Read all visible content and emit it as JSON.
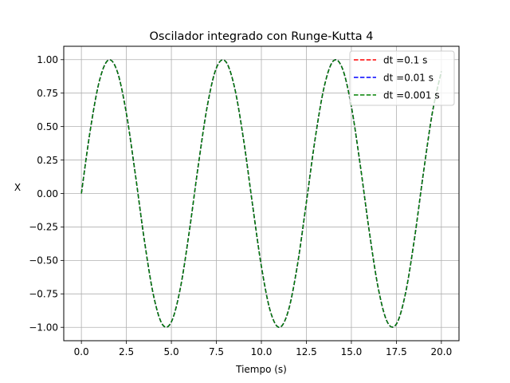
{
  "chart_data": {
    "type": "line",
    "title": "Oscilador integrado con Runge-Kutta 4",
    "xlabel": "Tiempo (s)",
    "ylabel": "X",
    "xlim": [
      -0.98,
      20.98
    ],
    "ylim": [
      -1.1,
      1.1
    ],
    "xticks": [
      0,
      2.5,
      5,
      7.5,
      10,
      12.5,
      15,
      17.5,
      20
    ],
    "xtick_labels": [
      "0.0",
      "2.5",
      "5.0",
      "7.5",
      "10.0",
      "12.5",
      "15.0",
      "17.5",
      "20.0"
    ],
    "yticks": [
      -1,
      -0.75,
      -0.5,
      -0.25,
      0,
      0.25,
      0.5,
      0.75,
      1
    ],
    "ytick_labels": [
      "−1.00",
      "−0.75",
      "−0.50",
      "−0.25",
      "0.00",
      "0.25",
      "0.50",
      "0.75",
      "1.00"
    ],
    "grid": true,
    "legend_position": "top-right",
    "x": [
      0.0,
      0.5,
      1.0,
      1.5,
      2.0,
      2.5,
      3.0,
      3.5,
      4.0,
      4.5,
      5.0,
      5.5,
      6.0,
      6.5,
      7.0,
      7.5,
      8.0,
      8.5,
      9.0,
      9.5,
      10.0,
      10.5,
      11.0,
      11.5,
      12.0,
      12.5,
      13.0,
      13.5,
      14.0,
      14.5,
      15.0,
      15.5,
      16.0,
      16.5,
      17.0,
      17.5,
      18.0,
      18.5,
      19.0,
      19.5,
      20.0
    ],
    "series": [
      {
        "name": "dt =0.1 s",
        "color": "#ff0000",
        "linestyle": "dashed",
        "values": [
          0.0,
          0.479,
          0.841,
          0.997,
          0.909,
          0.598,
          0.141,
          -0.351,
          -0.757,
          -0.978,
          -0.959,
          -0.706,
          -0.279,
          0.215,
          0.657,
          0.938,
          0.989,
          0.798,
          0.412,
          -0.075,
          -0.544,
          -0.88,
          -1.0,
          -0.875,
          -0.537,
          -0.066,
          0.42,
          0.803,
          0.991,
          0.935,
          0.65,
          0.206,
          -0.288,
          -0.712,
          -0.961,
          -0.976,
          -0.751,
          -0.343,
          0.151,
          0.604,
          0.913
        ]
      },
      {
        "name": "dt =0.01 s",
        "color": "#0000ff",
        "linestyle": "dashed",
        "values": [
          0.0,
          0.479,
          0.841,
          0.997,
          0.909,
          0.598,
          0.141,
          -0.351,
          -0.757,
          -0.978,
          -0.959,
          -0.706,
          -0.279,
          0.215,
          0.657,
          0.938,
          0.989,
          0.798,
          0.412,
          -0.075,
          -0.544,
          -0.88,
          -1.0,
          -0.875,
          -0.537,
          -0.066,
          0.42,
          0.803,
          0.991,
          0.935,
          0.65,
          0.206,
          -0.288,
          -0.712,
          -0.961,
          -0.976,
          -0.751,
          -0.343,
          0.151,
          0.604,
          0.913
        ]
      },
      {
        "name": "dt =0.001 s",
        "color": "#008000",
        "linestyle": "dashed",
        "values": [
          0.0,
          0.479,
          0.841,
          0.997,
          0.909,
          0.598,
          0.141,
          -0.351,
          -0.757,
          -0.978,
          -0.959,
          -0.706,
          -0.279,
          0.215,
          0.657,
          0.938,
          0.989,
          0.798,
          0.412,
          -0.075,
          -0.544,
          -0.88,
          -1.0,
          -0.875,
          -0.537,
          -0.066,
          0.42,
          0.803,
          0.991,
          0.935,
          0.65,
          0.206,
          -0.288,
          -0.712,
          -0.961,
          -0.976,
          -0.751,
          -0.343,
          0.151,
          0.604,
          0.913
        ]
      }
    ]
  }
}
